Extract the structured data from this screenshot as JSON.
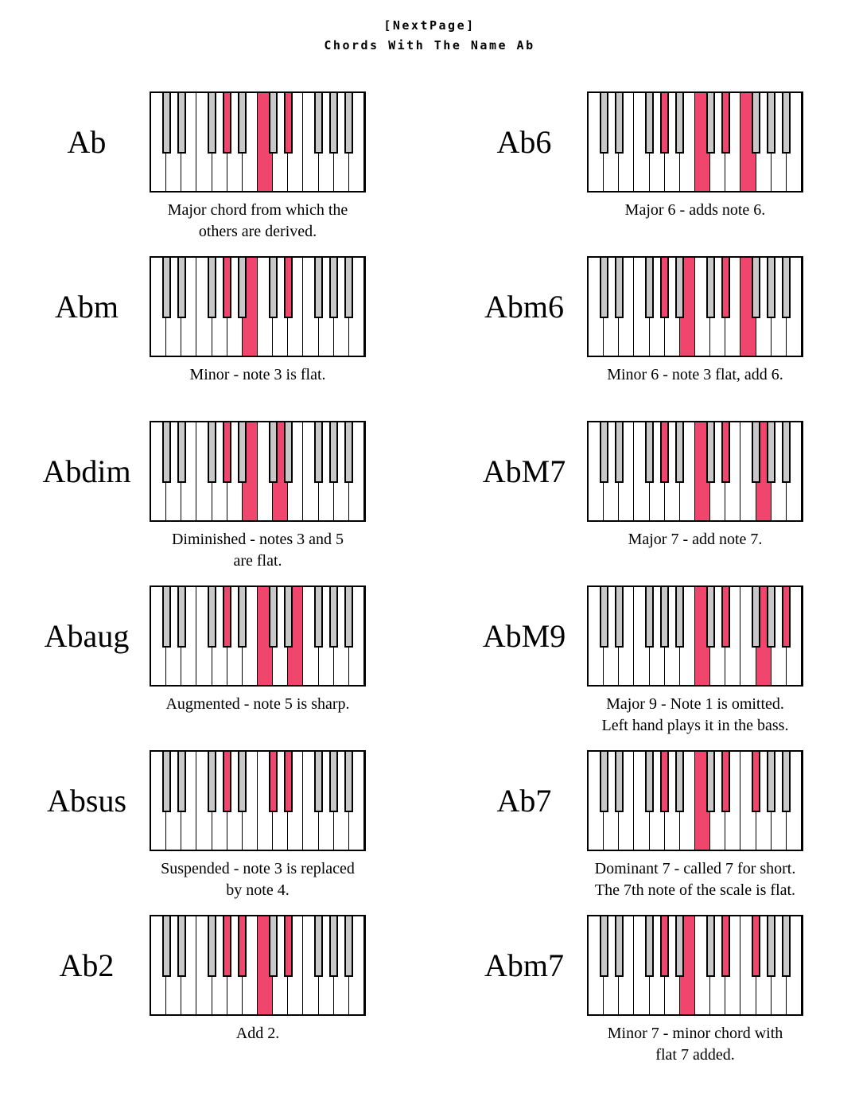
{
  "header": {
    "tag": "[NextPage]",
    "title": "Chords With The Name Ab"
  },
  "colors": {
    "highlight": "#F0466E",
    "key_gray": "#C8C8C8",
    "outline": "#000000"
  },
  "keyboard": {
    "white_key_count": 14,
    "white_notes": [
      "C1",
      "D1",
      "E1",
      "F1",
      "G1",
      "A1",
      "B1",
      "C2",
      "D2",
      "E2",
      "F2",
      "G2",
      "A2",
      "B2"
    ],
    "black_after_white": [
      1,
      2,
      4,
      5,
      6,
      8,
      9,
      11,
      12,
      13
    ],
    "black_notes": [
      "Db1",
      "Eb1",
      "Gb1",
      "Ab1",
      "Bb1",
      "Db2",
      "Eb2",
      "Gb2",
      "Ab2",
      "Bb2"
    ]
  },
  "chords": [
    {
      "name": "Ab",
      "caption_lines": [
        "Major chord from which the",
        "others are derived."
      ],
      "white_highlights": [
        8
      ],
      "black_highlights": [
        4,
        7
      ]
    },
    {
      "name": "Ab6",
      "caption_lines": [
        "Major 6 - adds note 6."
      ],
      "white_highlights": [
        8,
        11
      ],
      "black_highlights": [
        4,
        7
      ]
    },
    {
      "name": "Abm",
      "caption_lines": [
        "Minor - note 3 is flat."
      ],
      "white_highlights": [
        7
      ],
      "black_highlights": [
        4,
        7
      ]
    },
    {
      "name": "Abm6",
      "caption_lines": [
        "Minor 6 - note 3 flat, add 6."
      ],
      "white_highlights": [
        7,
        11
      ],
      "black_highlights": [
        4,
        7
      ]
    },
    {
      "name": "Abdim",
      "caption_lines": [
        "Diminished - notes 3 and 5",
        "are flat."
      ],
      "white_highlights": [
        7,
        9
      ],
      "black_highlights": [
        4
      ]
    },
    {
      "name": "AbM7",
      "caption_lines": [
        "Major 7 - add note 7."
      ],
      "white_highlights": [
        8,
        12
      ],
      "black_highlights": [
        4,
        7
      ]
    },
    {
      "name": "Abaug",
      "caption_lines": [
        "Augmented - note 5 is sharp."
      ],
      "white_highlights": [
        8,
        10
      ],
      "black_highlights": [
        4
      ]
    },
    {
      "name": "AbM9",
      "caption_lines": [
        "Major 9 - Note 1 is omitted.",
        "Left hand plays it in the bass."
      ],
      "white_highlights": [
        8,
        12
      ],
      "black_highlights": [
        7,
        10
      ]
    },
    {
      "name": "Absus",
      "caption_lines": [
        "Suspended - note 3 is replaced",
        "by note 4."
      ],
      "white_highlights": [],
      "black_highlights": [
        4,
        6,
        7
      ]
    },
    {
      "name": "Ab7",
      "caption_lines": [
        "Dominant 7 - called 7 for short.",
        "The 7th note of the scale is flat."
      ],
      "white_highlights": [
        8
      ],
      "black_highlights": [
        4,
        7,
        8
      ]
    },
    {
      "name": "Ab2",
      "caption_lines": [
        "Add 2."
      ],
      "white_highlights": [
        8
      ],
      "black_highlights": [
        4,
        5,
        7
      ]
    },
    {
      "name": "Abm7",
      "caption_lines": [
        "Minor 7 - minor chord with",
        "flat 7 added."
      ],
      "white_highlights": [
        7
      ],
      "black_highlights": [
        4,
        7,
        8
      ]
    }
  ]
}
